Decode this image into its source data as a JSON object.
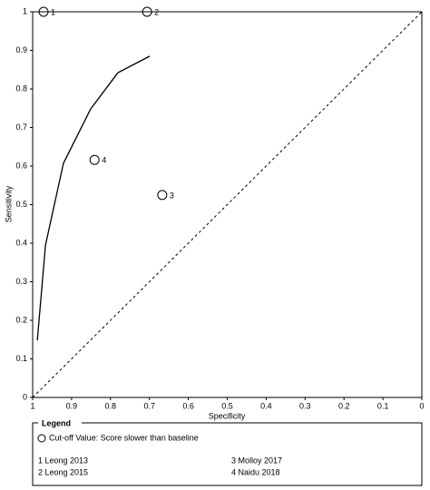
{
  "chart_data": {
    "type": "scatter",
    "xlabel": "Specificity",
    "ylabel": "Sensitivity",
    "xlim": [
      1,
      0
    ],
    "ylim": [
      0,
      1
    ],
    "xticks": [
      1,
      0.9,
      0.8,
      0.7,
      0.6,
      0.5,
      0.4,
      0.3,
      0.2,
      0.1,
      0
    ],
    "yticks": [
      0,
      0.1,
      0.2,
      0.3,
      0.4,
      0.5,
      0.6,
      0.7,
      0.8,
      0.9,
      1
    ],
    "series": [
      {
        "name": "Cut-off Value: Score slower than baseline",
        "color": "#000000",
        "x": [
          0.972,
          0.706,
          0.667,
          0.841
        ],
        "values": [
          1.0,
          1.0,
          0.525,
          0.616
        ],
        "labels": [
          "1",
          "2",
          "3",
          "4"
        ]
      }
    ],
    "curve": {
      "color": "#000000",
      "x": [
        0.988,
        0.967,
        0.921,
        0.851,
        0.781,
        0.699
      ],
      "values": [
        0.148,
        0.395,
        0.607,
        0.748,
        0.842,
        0.885
      ]
    },
    "legend_title": "Legend",
    "studies": [
      "1 Leong 2013",
      "2 Leong 2015",
      "3 Molloy 2017",
      "4 Naidu 2018"
    ]
  }
}
